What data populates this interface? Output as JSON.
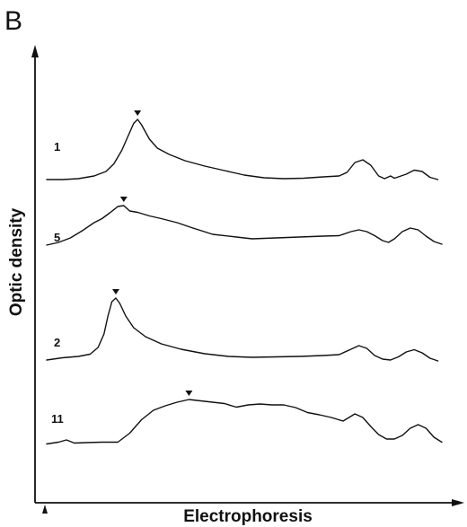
{
  "panel_label": "B",
  "colors": {
    "ink": "#111111",
    "background": "#ffffff"
  },
  "chart_data": {
    "type": "line",
    "xlabel": "Electrophoresis",
    "ylabel": "Optic density",
    "grid": false,
    "legend": "none",
    "series": [
      {
        "name": "1",
        "peak_marker": true,
        "points": [
          [
            0,
            0.0
          ],
          [
            4,
            0.0
          ],
          [
            8,
            0.2
          ],
          [
            12,
            0.8
          ],
          [
            15,
            1.8
          ],
          [
            17,
            3.5
          ],
          [
            19,
            6.5
          ],
          [
            20.5,
            9.5
          ],
          [
            22,
            12.5
          ],
          [
            23,
            13.4
          ],
          [
            24,
            12.2
          ],
          [
            26,
            9.0
          ],
          [
            28,
            7.0
          ],
          [
            31,
            5.6
          ],
          [
            35,
            4.2
          ],
          [
            40,
            3.0
          ],
          [
            45,
            2.0
          ],
          [
            50,
            1.0
          ],
          [
            55,
            0.4
          ],
          [
            60,
            0.2
          ],
          [
            65,
            0.3
          ],
          [
            70,
            0.6
          ],
          [
            74,
            0.8
          ],
          [
            76,
            1.6
          ],
          [
            78,
            3.8
          ],
          [
            80,
            4.4
          ],
          [
            82,
            3.2
          ],
          [
            84,
            0.8
          ],
          [
            85.5,
            0.2
          ],
          [
            87,
            0.8
          ],
          [
            88,
            0.3
          ],
          [
            91,
            1.2
          ],
          [
            93,
            2.1
          ],
          [
            95,
            1.8
          ],
          [
            97,
            0.5
          ],
          [
            99,
            0.0
          ]
        ]
      },
      {
        "name": "5",
        "peak_marker": true,
        "points": [
          [
            0,
            0.0
          ],
          [
            3,
            0.6
          ],
          [
            6,
            1.6
          ],
          [
            9,
            3.2
          ],
          [
            12,
            5.0
          ],
          [
            14,
            5.9
          ],
          [
            16,
            7.2
          ],
          [
            18,
            8.6
          ],
          [
            19.5,
            8.8
          ],
          [
            21,
            7.6
          ],
          [
            23,
            7.3
          ],
          [
            26,
            6.5
          ],
          [
            29,
            5.9
          ],
          [
            33,
            5.0
          ],
          [
            37,
            3.8
          ],
          [
            42,
            2.4
          ],
          [
            48,
            1.8
          ],
          [
            52,
            1.4
          ],
          [
            58,
            1.6
          ],
          [
            64,
            1.8
          ],
          [
            70,
            2.0
          ],
          [
            74,
            2.1
          ],
          [
            77,
            3.0
          ],
          [
            79,
            3.4
          ],
          [
            81,
            3.0
          ],
          [
            83,
            2.1
          ],
          [
            85,
            1.0
          ],
          [
            86.5,
            0.6
          ],
          [
            88,
            1.4
          ],
          [
            90,
            3.0
          ],
          [
            92,
            3.8
          ],
          [
            94,
            3.4
          ],
          [
            96,
            2.0
          ],
          [
            98,
            0.8
          ],
          [
            100,
            0.2
          ]
        ]
      },
      {
        "name": "2",
        "peak_marker": true,
        "points": [
          [
            0,
            0.2
          ],
          [
            4,
            0.7
          ],
          [
            8,
            1.0
          ],
          [
            11,
            1.5
          ],
          [
            13,
            3.0
          ],
          [
            14.5,
            6.0
          ],
          [
            15.5,
            10.0
          ],
          [
            16.5,
            13.2
          ],
          [
            17.5,
            14.0
          ],
          [
            18.5,
            12.8
          ],
          [
            20,
            10.0
          ],
          [
            22,
            7.4
          ],
          [
            25,
            5.4
          ],
          [
            29,
            3.8
          ],
          [
            34,
            2.6
          ],
          [
            40,
            1.6
          ],
          [
            46,
            1.0
          ],
          [
            52,
            0.8
          ],
          [
            58,
            0.9
          ],
          [
            64,
            1.0
          ],
          [
            70,
            1.2
          ],
          [
            74,
            1.4
          ],
          [
            77,
            2.6
          ],
          [
            79,
            3.4
          ],
          [
            81,
            2.8
          ],
          [
            83,
            1.2
          ],
          [
            85,
            0.4
          ],
          [
            87,
            0.2
          ],
          [
            89,
            0.9
          ],
          [
            91,
            2.0
          ],
          [
            93,
            2.5
          ],
          [
            95,
            1.8
          ],
          [
            97,
            0.6
          ],
          [
            99,
            0.0
          ]
        ]
      },
      {
        "name": "11",
        "peak_marker": true,
        "points": [
          [
            0,
            0.1
          ],
          [
            3,
            0.5
          ],
          [
            5,
            1.0
          ],
          [
            7,
            0.3
          ],
          [
            10,
            0.4
          ],
          [
            14,
            0.5
          ],
          [
            18,
            0.5
          ],
          [
            21,
            2.5
          ],
          [
            24,
            5.5
          ],
          [
            27,
            7.6
          ],
          [
            30,
            8.6
          ],
          [
            33,
            9.4
          ],
          [
            36,
            10.0
          ],
          [
            39,
            9.7
          ],
          [
            42,
            9.4
          ],
          [
            45,
            9.1
          ],
          [
            48,
            8.3
          ],
          [
            51,
            8.8
          ],
          [
            54,
            9.0
          ],
          [
            57,
            8.8
          ],
          [
            60,
            8.8
          ],
          [
            63,
            8.2
          ],
          [
            66,
            7.1
          ],
          [
            69,
            6.6
          ],
          [
            72,
            6.0
          ],
          [
            75,
            5.2
          ],
          [
            78,
            6.8
          ],
          [
            80,
            6.0
          ],
          [
            82,
            4.0
          ],
          [
            84,
            2.2
          ],
          [
            86,
            1.2
          ],
          [
            88,
            1.2
          ],
          [
            90,
            2.0
          ],
          [
            92,
            3.6
          ],
          [
            94,
            4.4
          ],
          [
            96,
            3.6
          ],
          [
            98,
            1.6
          ],
          [
            100,
            0.5
          ]
        ]
      }
    ]
  }
}
